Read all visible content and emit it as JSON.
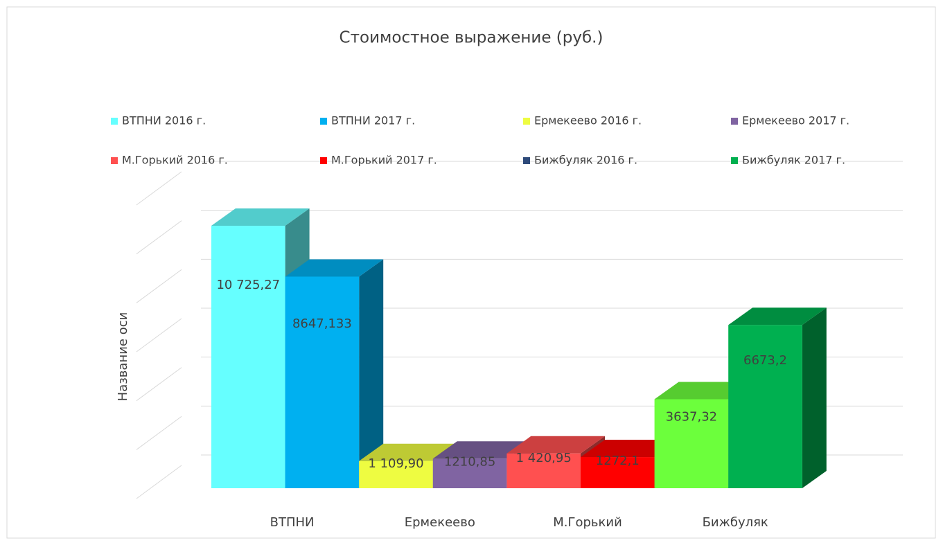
{
  "chart_data": {
    "type": "bar3d",
    "title": "Стоимостное выражение (руб.)",
    "y_axis_label": "Название оси",
    "categories": [
      "ВТПНИ",
      "Ермекеево",
      "М.Горький",
      "Бижбуляк"
    ],
    "series": [
      {
        "name": "ВТПНИ 2016 г.",
        "color": "#66ffff",
        "values": [
          10725.27,
          null,
          null,
          null
        ],
        "value_labels": [
          "10 725,27",
          null,
          null,
          null
        ]
      },
      {
        "name": "ВТПНИ 2017 г.",
        "color": "#00b0f0",
        "values": [
          8647.133,
          null,
          null,
          null
        ],
        "value_labels": [
          "8647,133",
          null,
          null,
          null
        ]
      },
      {
        "name": "Ермекеево 2016 г.",
        "color": "#eefc41",
        "values": [
          null,
          1109.9,
          null,
          null
        ],
        "value_labels": [
          null,
          "1 109,90",
          null,
          null
        ]
      },
      {
        "name": "Ермекеево 2017 г.",
        "color": "#8064a2",
        "values": [
          null,
          1210.85,
          null,
          null
        ],
        "value_labels": [
          null,
          "1210,85",
          null,
          null
        ]
      },
      {
        "name": "М.Горький 2016 г.",
        "color": "#ff5050",
        "values": [
          null,
          null,
          1420.95,
          null
        ],
        "value_labels": [
          null,
          null,
          "1 420,95",
          null
        ]
      },
      {
        "name": "М.Горький 2017 г.",
        "color": "#ff0000",
        "values": [
          null,
          null,
          1272.1,
          null
        ],
        "value_labels": [
          null,
          null,
          "1272,1",
          null
        ]
      },
      {
        "name": "Бижбуляк 2016 г.",
        "color": "#2e4a7a",
        "bar_color": "#6cff3c",
        "values": [
          null,
          null,
          null,
          3637.32
        ],
        "value_labels": [
          null,
          null,
          null,
          "3637,32"
        ]
      },
      {
        "name": "Бижбуляк 2017 г.",
        "color": "#00b050",
        "values": [
          null,
          null,
          null,
          6673.2
        ],
        "value_labels": [
          null,
          null,
          null,
          "6673,2"
        ]
      }
    ],
    "ylim": [
      0,
      12000
    ],
    "yticks": [
      0,
      2000,
      4000,
      6000,
      8000,
      10000,
      12000
    ],
    "grid": true,
    "legend": "top"
  }
}
